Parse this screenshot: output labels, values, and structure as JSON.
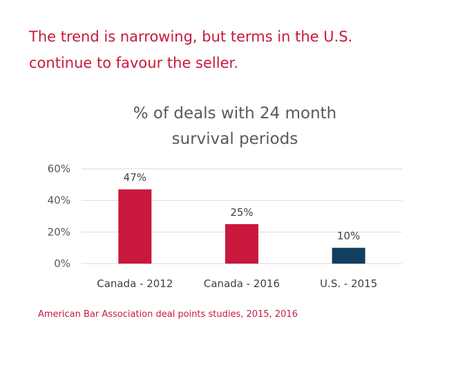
{
  "headline": {
    "line1": "The trend is narrowing, but terms in the U.S.",
    "line2": "continue to favour the seller."
  },
  "source": "American Bar Association deal points studies, 2015, 2016",
  "chart_data": {
    "type": "bar",
    "title_lines": [
      "% of deals with 24 month",
      "survival periods"
    ],
    "categories": [
      "Canada - 2012",
      "Canada - 2016",
      "U.S. - 2015"
    ],
    "values": [
      47,
      25,
      10
    ],
    "data_labels": [
      "47%",
      "25%",
      "10%"
    ],
    "bar_colors": [
      "#c8193c",
      "#c8193c",
      "#123f5f"
    ],
    "ylim": [
      0,
      60
    ],
    "yticks": [
      0,
      20,
      40,
      60
    ],
    "ytick_labels": [
      "0%",
      "20%",
      "40%",
      "60%"
    ],
    "grid": true,
    "legend": "none",
    "xlabel": "",
    "ylabel": ""
  }
}
